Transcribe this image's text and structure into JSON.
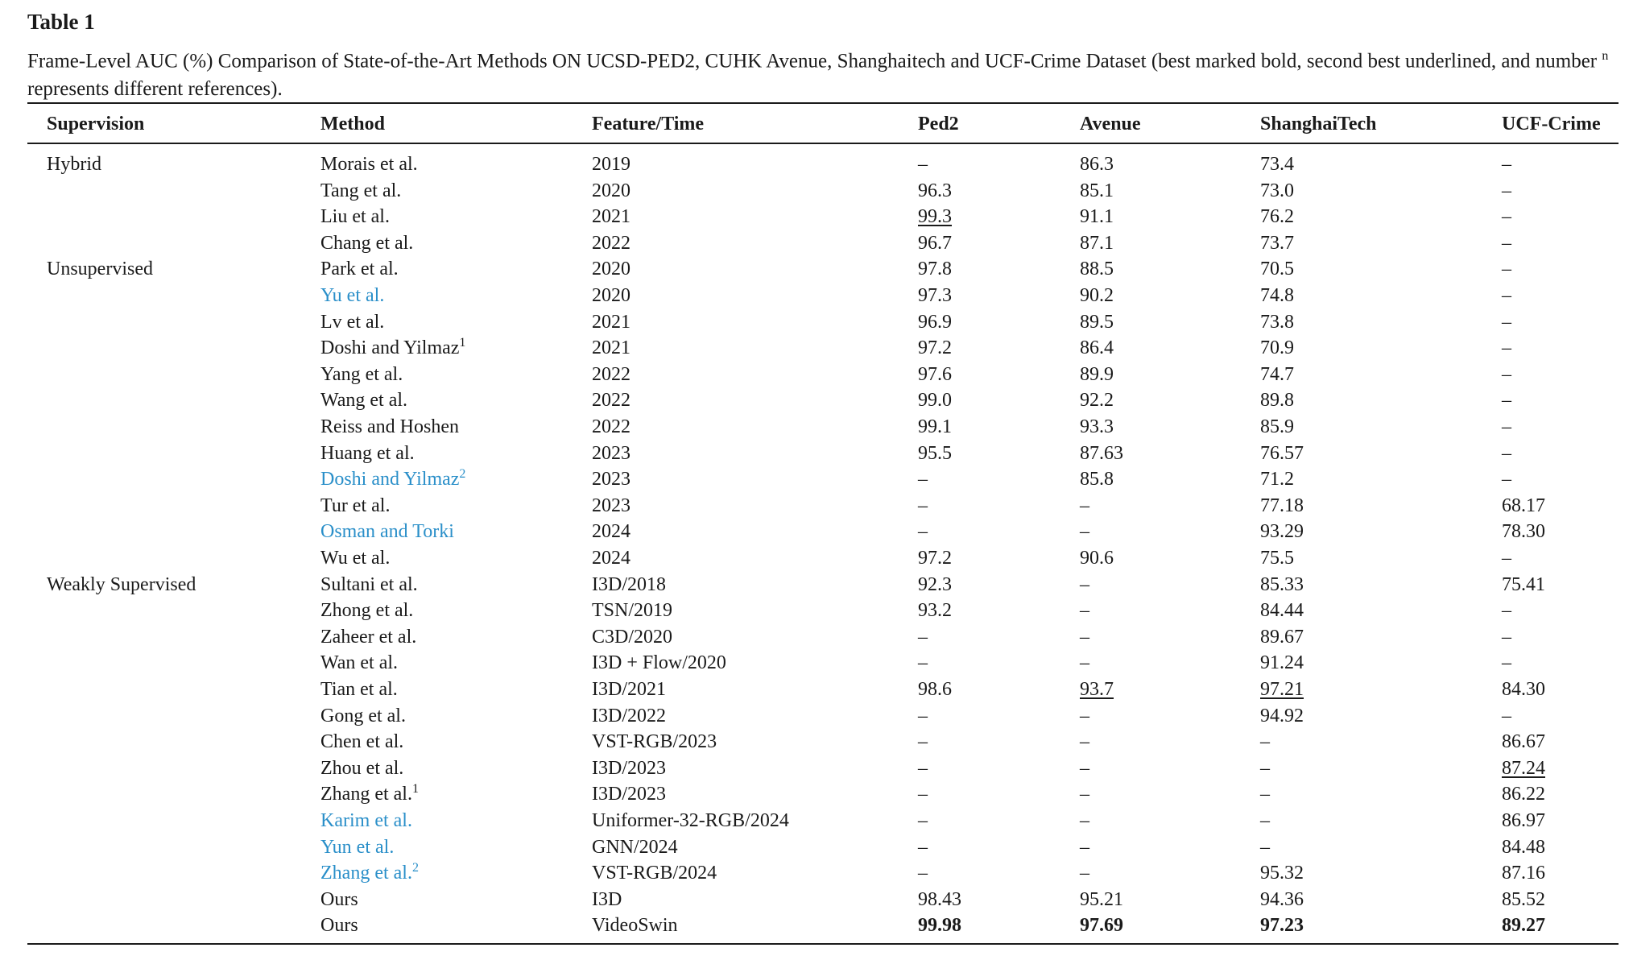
{
  "header": {
    "title": "Table 1",
    "caption_before": "Frame-Level AUC (%) Comparison of State-of-the-Art Methods ON UCSD-PED2, CUHK Avenue, Shanghaitech and UCF-Crime Dataset (best marked bold, second best underlined, and number ",
    "caption_sup": "n",
    "caption_after": " represents different references)."
  },
  "table": {
    "columns": [
      "Supervision",
      "Method",
      "Feature/Time",
      "Ped2",
      "Avenue",
      "ShanghaiTech",
      "UCF-Crime"
    ],
    "rows": [
      {
        "supervision": "Hybrid",
        "cells": [
          "Morais et al.",
          "2019",
          "–",
          "86.3",
          "73.4",
          "–"
        ]
      },
      {
        "cells": [
          "Tang et al.",
          "2020",
          "96.3",
          "85.1",
          "73.0",
          "–"
        ]
      },
      {
        "cells": [
          "Liu et al.",
          "2021",
          "99.3",
          "91.1",
          "76.2",
          "–"
        ],
        "underline": [
          2
        ]
      },
      {
        "cells": [
          "Chang et al.",
          "2022",
          "96.7",
          "87.1",
          "73.7",
          "–"
        ]
      },
      {
        "supervision": "Unsupervised",
        "cells": [
          "Park et al.",
          "2020",
          "97.8",
          "88.5",
          "70.5",
          "–"
        ]
      },
      {
        "cells": [
          "Yu et al.",
          "2020",
          "97.3",
          "90.2",
          "74.8",
          "–"
        ],
        "link": true
      },
      {
        "cells": [
          "Lv et al.",
          "2021",
          "96.9",
          "89.5",
          "73.8",
          "–"
        ]
      },
      {
        "cells": [
          "Doshi and Yilmaz",
          "2021",
          "97.2",
          "86.4",
          "70.9",
          "–"
        ],
        "sup": "1"
      },
      {
        "cells": [
          "Yang et al.",
          "2022",
          "97.6",
          "89.9",
          "74.7",
          "–"
        ]
      },
      {
        "cells": [
          "Wang et al.",
          "2022",
          "99.0",
          "92.2",
          "89.8",
          "–"
        ]
      },
      {
        "cells": [
          "Reiss and Hoshen",
          "2022",
          "99.1",
          "93.3",
          "85.9",
          "–"
        ]
      },
      {
        "cells": [
          "Huang et al.",
          "2023",
          "95.5",
          "87.63",
          "76.57",
          "–"
        ]
      },
      {
        "cells": [
          "Doshi and Yilmaz",
          "2023",
          "–",
          "85.8",
          "71.2",
          "–"
        ],
        "sup": "2",
        "link": true
      },
      {
        "cells": [
          "Tur et al.",
          "2023",
          "–",
          "–",
          "77.18",
          "68.17"
        ]
      },
      {
        "cells": [
          "Osman and Torki",
          "2024",
          "–",
          "–",
          "93.29",
          "78.30"
        ],
        "link": true
      },
      {
        "cells": [
          "Wu et al.",
          "2024",
          "97.2",
          "90.6",
          "75.5",
          "–"
        ]
      },
      {
        "supervision": "Weakly Supervised",
        "cells": [
          "Sultani et al.",
          "I3D/2018",
          "92.3",
          "–",
          "85.33",
          "75.41"
        ]
      },
      {
        "cells": [
          "Zhong et al.",
          "TSN/2019",
          "93.2",
          "–",
          "84.44",
          "–"
        ]
      },
      {
        "cells": [
          "Zaheer et al.",
          "C3D/2020",
          "–",
          "–",
          "89.67",
          "–"
        ]
      },
      {
        "cells": [
          "Wan et al.",
          "I3D + Flow/2020",
          "–",
          "–",
          "91.24",
          "–"
        ]
      },
      {
        "cells": [
          "Tian et al.",
          "I3D/2021",
          "98.6",
          "93.7",
          "97.21",
          "84.30"
        ],
        "underline": [
          3,
          4
        ]
      },
      {
        "cells": [
          "Gong et al.",
          "I3D/2022",
          "–",
          "–",
          "94.92",
          "–"
        ]
      },
      {
        "cells": [
          "Chen et al.",
          "VST-RGB/2023",
          "–",
          "–",
          "–",
          "86.67"
        ]
      },
      {
        "cells": [
          "Zhou et al.",
          "I3D/2023",
          "–",
          "–",
          "–",
          "87.24"
        ],
        "underline": [
          5
        ]
      },
      {
        "cells": [
          "Zhang et al.",
          "I3D/2023",
          "–",
          "–",
          "–",
          "86.22"
        ],
        "sup": "1"
      },
      {
        "cells": [
          "Karim et al.",
          "Uniformer-32-RGB/2024",
          "–",
          "–",
          "–",
          "86.97"
        ],
        "link": true
      },
      {
        "cells": [
          "Yun et al.",
          "GNN/2024",
          "–",
          "–",
          "–",
          "84.48"
        ],
        "link": true
      },
      {
        "cells": [
          "Zhang et al.",
          "VST-RGB/2024",
          "–",
          "–",
          "95.32",
          "87.16"
        ],
        "sup": "2",
        "link": true
      },
      {
        "cells": [
          "Ours",
          "I3D",
          "98.43",
          "95.21",
          "94.36",
          "85.52"
        ]
      },
      {
        "cells": [
          "Ours",
          "VideoSwin",
          "99.98",
          "97.69",
          "97.23",
          "89.27"
        ],
        "bold": [
          2,
          3,
          4,
          5
        ]
      }
    ]
  }
}
